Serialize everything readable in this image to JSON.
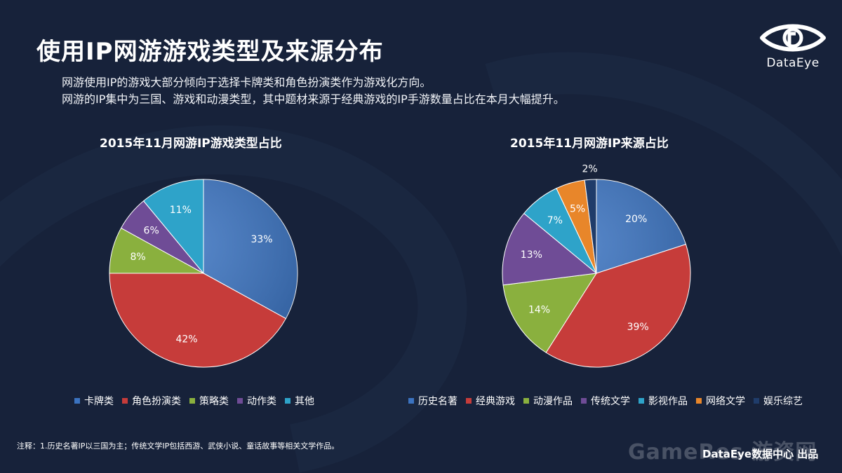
{
  "page": {
    "title": "使用IP网游游戏类型及来源分布",
    "subtitle_lines": [
      "网游使用IP的游戏大部分倾向于选择卡牌类和角色扮演类作为游戏化方向。",
      "网游的IP集中为三国、游戏和动漫类型，其中题材来源于经典游戏的IP手游数量占比在本月大幅提升。"
    ],
    "logo_text": "DataEye",
    "note": "注释：1.历史名著IP以三国为主；传统文学IP包括西游、武侠小说、童话故事等相关文学作品。",
    "watermark": "GameRes 游资网",
    "footer": "DataEye数据中心 出品"
  },
  "chart_data": [
    {
      "type": "pie",
      "title": "2015年11月网游IP游戏类型占比",
      "categories": [
        "卡牌类",
        "角色扮演类",
        "策略类",
        "动作类",
        "其他"
      ],
      "values": [
        33,
        42,
        8,
        6,
        11
      ],
      "labels": [
        "33%",
        "42%",
        "8%",
        "6%",
        "11%"
      ],
      "colors": [
        "#3b73c0",
        "#c63c3a",
        "#8ab03e",
        "#6f4c96",
        "#2ea3c9"
      ],
      "legend_position": "bottom"
    },
    {
      "type": "pie",
      "title": "2015年11月网游IP来源占比",
      "categories": [
        "历史名著",
        "经典游戏",
        "动漫作品",
        "传统文学",
        "影视作品",
        "网络文学",
        "娱乐综艺"
      ],
      "values": [
        20,
        39,
        14,
        13,
        7,
        5,
        2
      ],
      "labels": [
        "20%",
        "39%",
        "14%",
        "13%",
        "7%",
        "5%",
        "2%"
      ],
      "colors": [
        "#3b73c0",
        "#c63c3a",
        "#8ab03e",
        "#6f4c96",
        "#2ea3c9",
        "#e8862a",
        "#1f3c6a"
      ],
      "legend_position": "bottom"
    }
  ]
}
